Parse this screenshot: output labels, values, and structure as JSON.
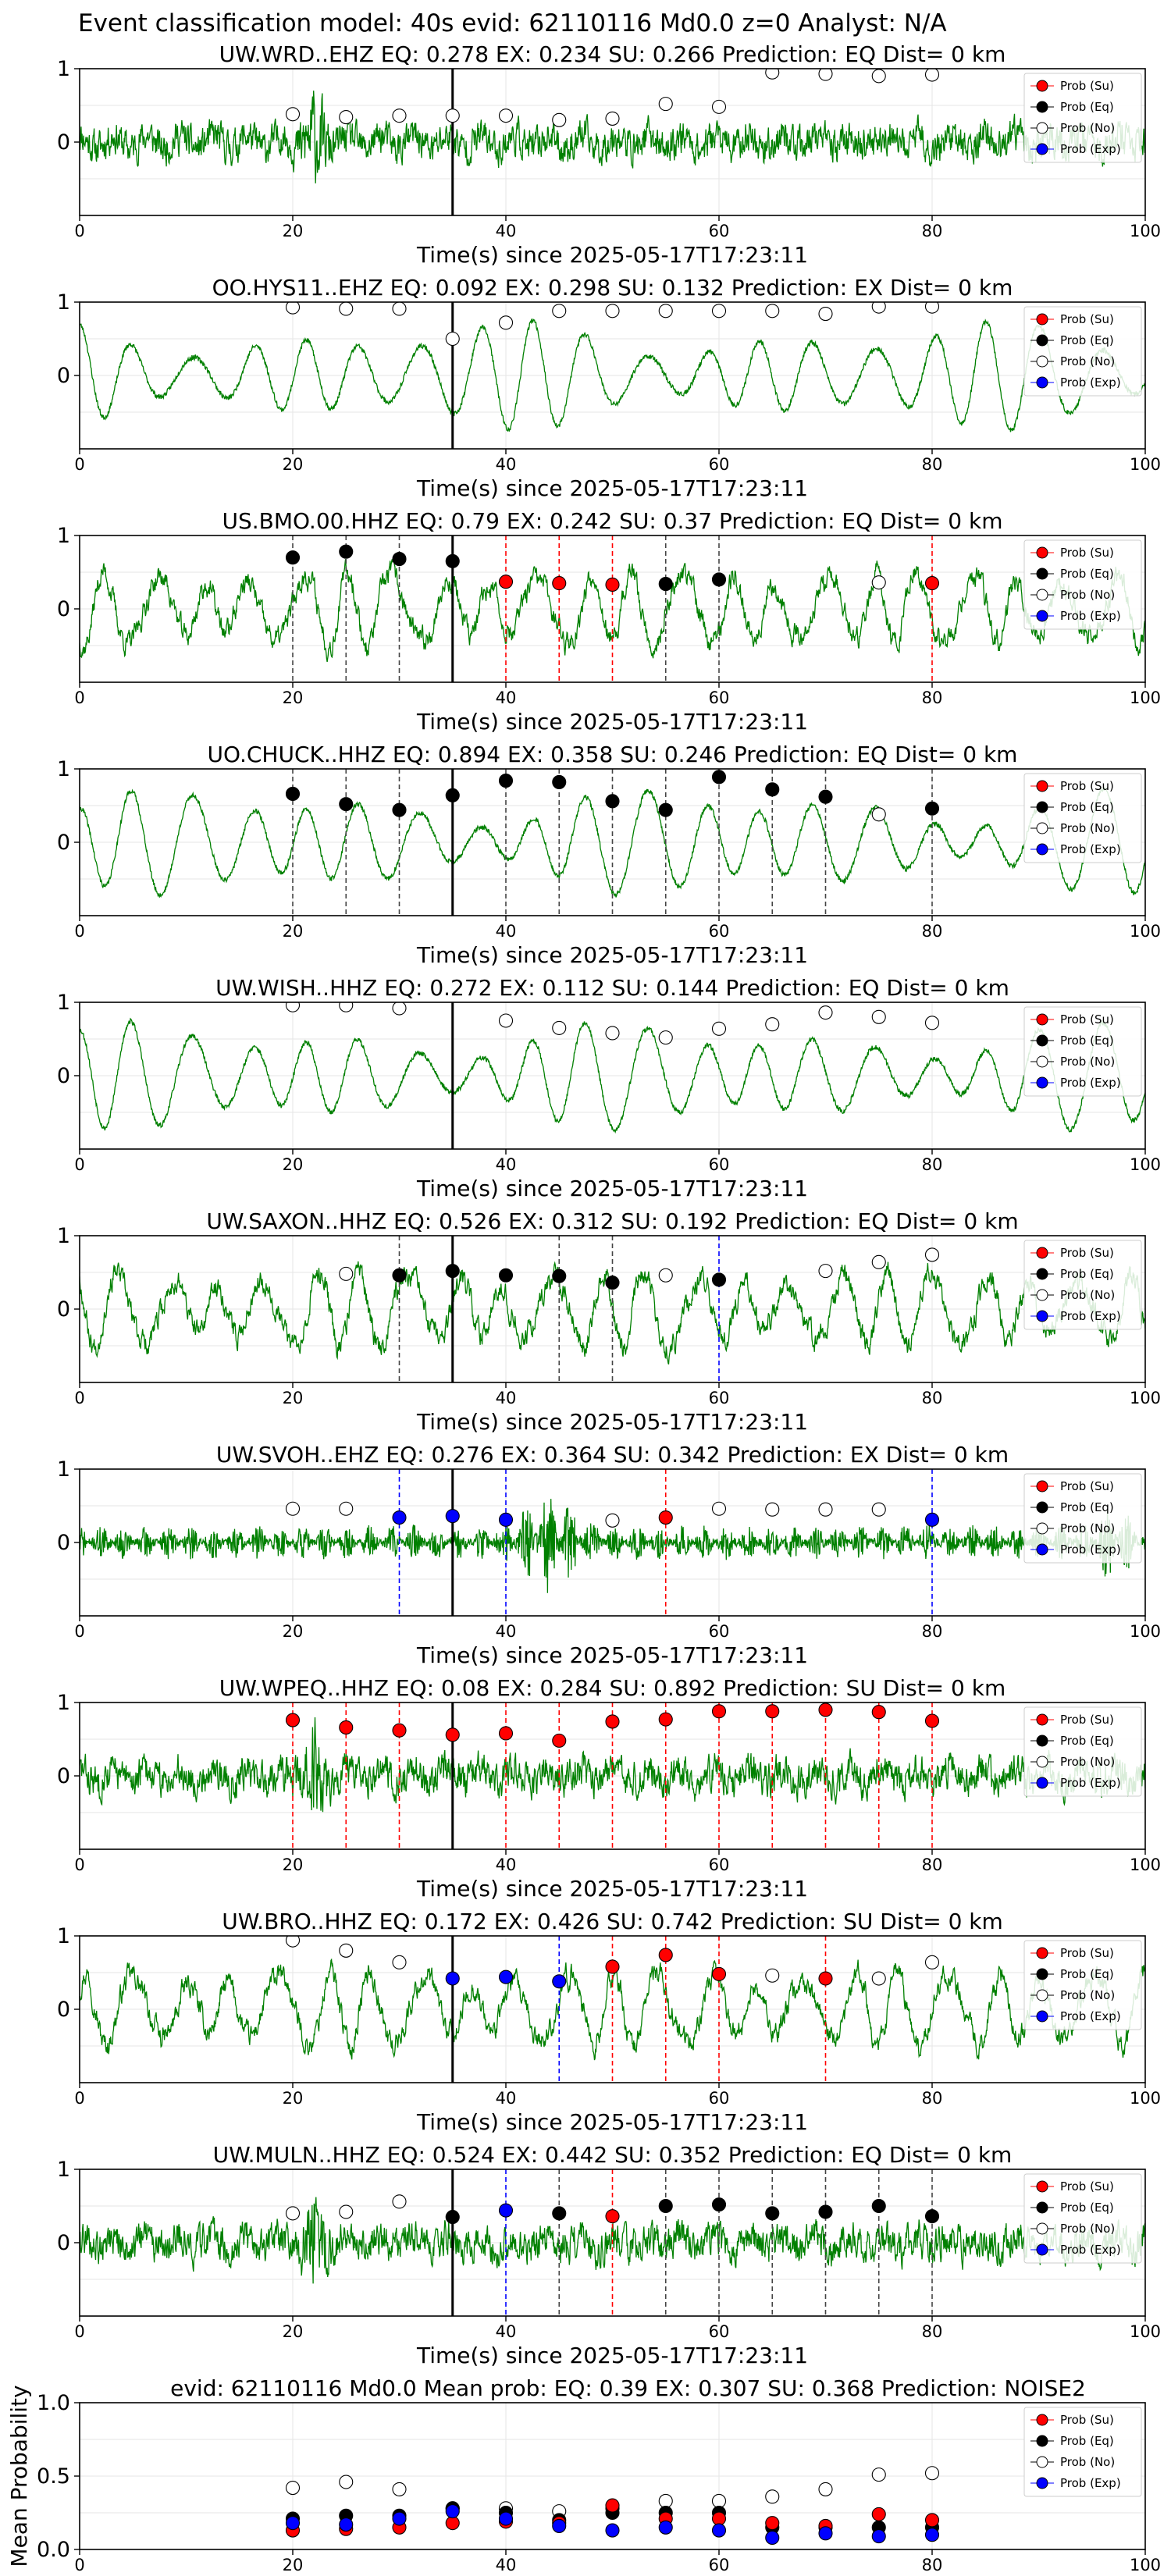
{
  "figure_title": "Event classification model: 40s evid: 62110116 Md0.0 z=0 Analyst: N/A",
  "x_label": "Time(s) since 2025-05-17T17:23:11",
  "legend": [
    {
      "label": "Prob (Su)",
      "color": "#ff0000"
    },
    {
      "label": "Prob (Eq)",
      "color": "#000000"
    },
    {
      "label": "Prob (No)",
      "color": "#ffffff"
    },
    {
      "label": "Prob (Exp)",
      "color": "#0000ff"
    }
  ],
  "colors": {
    "trace": "#008000",
    "su": "#ff0000",
    "eq": "#000000",
    "no": "#ffffff",
    "exp": "#0000ff",
    "pick": "#000000"
  },
  "chart_data": [
    {
      "type": "line",
      "station": "UW.WRD..EHZ",
      "title": "UW.WRD..EHZ   EQ: 0.278  EX: 0.234  SU: 0.266   Prediction: EQ    Dist= 0 km",
      "xlim": [
        0,
        100
      ],
      "ylim": [
        -1,
        1
      ],
      "xticks": [
        0,
        20,
        40,
        60,
        80,
        100
      ],
      "yticks": [
        1,
        0
      ],
      "pick_time": 35,
      "trace_style": "noisy",
      "seed": 11,
      "x": [
        20,
        25,
        30,
        35,
        40,
        45,
        50,
        55,
        60,
        65,
        70,
        75,
        80
      ],
      "prob_no": [
        0.38,
        0.34,
        0.36,
        0.36,
        0.36,
        0.3,
        0.32,
        0.52,
        0.48,
        0.95,
        0.93,
        0.9,
        0.92
      ],
      "prob_eq": [],
      "prob_su": [],
      "prob_exp": [],
      "vlines": []
    },
    {
      "type": "line",
      "station": "OO.HYS11..EHZ",
      "title": "OO.HYS11..EHZ   EQ: 0.092  EX: 0.298  SU: 0.132   Prediction: EX    Dist= 0 km",
      "xlim": [
        0,
        100
      ],
      "ylim": [
        -1,
        1
      ],
      "xticks": [
        0,
        20,
        40,
        60,
        80,
        100
      ],
      "yticks": [
        1,
        0
      ],
      "pick_time": 35,
      "trace_style": "oscillating",
      "seed": 23,
      "x": [
        20,
        25,
        30,
        35,
        40,
        45,
        50,
        55,
        60,
        65,
        70,
        75,
        80
      ],
      "prob_no": [
        0.93,
        0.91,
        0.91,
        0.5,
        0.72,
        0.88,
        0.88,
        0.88,
        0.88,
        0.88,
        0.84,
        0.94,
        0.94
      ],
      "prob_eq": [],
      "prob_su": [],
      "prob_exp": [],
      "vlines": []
    },
    {
      "type": "line",
      "station": "US.BMO.00.HHZ",
      "title": "US.BMO.00.HHZ   EQ: 0.79  EX: 0.242  SU: 0.37   Prediction: EQ    Dist= 0 km",
      "xlim": [
        0,
        100
      ],
      "ylim": [
        -1,
        1
      ],
      "xticks": [
        0,
        20,
        40,
        60,
        80,
        100
      ],
      "yticks": [
        1,
        0
      ],
      "pick_time": 35,
      "trace_style": "mixed",
      "seed": 37,
      "x": [
        20,
        25,
        30,
        35,
        40,
        45,
        50,
        55,
        60,
        75,
        80
      ],
      "prob_eq": [
        [
          20,
          0.7
        ],
        [
          25,
          0.78
        ],
        [
          30,
          0.68
        ],
        [
          35,
          0.65
        ],
        [
          55,
          0.34
        ],
        [
          60,
          0.4
        ]
      ],
      "prob_su": [
        [
          40,
          0.37
        ],
        [
          45,
          0.35
        ],
        [
          50,
          0.33
        ],
        [
          80,
          0.35
        ]
      ],
      "prob_no": [
        [
          75,
          0.36
        ]
      ],
      "prob_exp": [],
      "vlines": [
        [
          20,
          "eq"
        ],
        [
          25,
          "eq"
        ],
        [
          30,
          "eq"
        ],
        [
          40,
          "su"
        ],
        [
          45,
          "su"
        ],
        [
          50,
          "su"
        ],
        [
          55,
          "eq"
        ],
        [
          60,
          "eq"
        ],
        [
          80,
          "su"
        ]
      ]
    },
    {
      "type": "line",
      "station": "UO.CHUCK..HHZ",
      "title": "UO.CHUCK..HHZ   EQ: 0.894  EX: 0.358  SU: 0.246   Prediction: EQ    Dist= 0 km",
      "xlim": [
        0,
        100
      ],
      "ylim": [
        -1,
        1
      ],
      "xticks": [
        0,
        20,
        40,
        60,
        80,
        100
      ],
      "yticks": [
        1,
        0
      ],
      "pick_time": 35,
      "trace_style": "oscillating",
      "seed": 41,
      "x": [
        20,
        25,
        30,
        35,
        40,
        45,
        50,
        55,
        60,
        65,
        70,
        75,
        80
      ],
      "prob_eq": [
        [
          20,
          0.66
        ],
        [
          25,
          0.52
        ],
        [
          30,
          0.44
        ],
        [
          35,
          0.64
        ],
        [
          40,
          0.84
        ],
        [
          45,
          0.82
        ],
        [
          50,
          0.56
        ],
        [
          55,
          0.44
        ],
        [
          60,
          0.89
        ],
        [
          65,
          0.72
        ],
        [
          70,
          0.62
        ],
        [
          80,
          0.46
        ]
      ],
      "prob_su": [],
      "prob_no": [
        [
          75,
          0.38
        ]
      ],
      "prob_exp": [],
      "vlines": [
        [
          20,
          "eq"
        ],
        [
          25,
          "eq"
        ],
        [
          30,
          "eq"
        ],
        [
          40,
          "eq"
        ],
        [
          45,
          "eq"
        ],
        [
          50,
          "eq"
        ],
        [
          55,
          "eq"
        ],
        [
          60,
          "eq"
        ],
        [
          65,
          "eq"
        ],
        [
          70,
          "eq"
        ],
        [
          80,
          "eq"
        ]
      ]
    },
    {
      "type": "line",
      "station": "UW.WISH..HHZ",
      "title": "UW.WISH..HHZ   EQ: 0.272  EX: 0.112  SU: 0.144   Prediction: EQ    Dist= 0 km",
      "xlim": [
        0,
        100
      ],
      "ylim": [
        -1,
        1
      ],
      "xticks": [
        0,
        20,
        40,
        60,
        80,
        100
      ],
      "yticks": [
        1,
        0
      ],
      "pick_time": 35,
      "trace_style": "oscillating",
      "seed": 53,
      "x": [
        20,
        25,
        30,
        35,
        40,
        45,
        50,
        55,
        60,
        65,
        70,
        75,
        80
      ],
      "prob_no": [
        [
          20,
          0.96
        ],
        [
          25,
          0.96
        ],
        [
          30,
          0.92
        ],
        [
          40,
          0.75
        ],
        [
          45,
          0.65
        ],
        [
          50,
          0.58
        ],
        [
          55,
          0.52
        ],
        [
          60,
          0.64
        ],
        [
          65,
          0.7
        ],
        [
          70,
          0.86
        ],
        [
          75,
          0.8
        ],
        [
          80,
          0.72
        ]
      ],
      "prob_eq": [],
      "prob_su": [],
      "prob_exp": [],
      "vlines": []
    },
    {
      "type": "line",
      "station": "UW.SAXON..HHZ",
      "title": "UW.SAXON..HHZ   EQ: 0.526  EX: 0.312  SU: 0.192   Prediction: EQ    Dist= 0 km",
      "xlim": [
        0,
        100
      ],
      "ylim": [
        -1,
        1
      ],
      "xticks": [
        0,
        20,
        40,
        60,
        80,
        100
      ],
      "yticks": [
        1,
        0
      ],
      "pick_time": 35,
      "trace_style": "mixed",
      "seed": 67,
      "x": [
        25,
        30,
        35,
        40,
        45,
        50,
        55,
        60,
        70,
        75,
        80
      ],
      "prob_no": [
        [
          25,
          0.48
        ],
        [
          55,
          0.46
        ],
        [
          70,
          0.52
        ],
        [
          75,
          0.64
        ],
        [
          80,
          0.74
        ]
      ],
      "prob_eq": [
        [
          30,
          0.46
        ],
        [
          35,
          0.52
        ],
        [
          40,
          0.46
        ],
        [
          45,
          0.45
        ],
        [
          50,
          0.36
        ],
        [
          60,
          0.4
        ]
      ],
      "prob_su": [],
      "prob_exp": [],
      "vlines": [
        [
          30,
          "eq"
        ],
        [
          45,
          "eq"
        ],
        [
          50,
          "eq"
        ],
        [
          60,
          "exp"
        ]
      ]
    },
    {
      "type": "line",
      "station": "UW.SVOH..EHZ",
      "title": "UW.SVOH..EHZ   EQ: 0.276  EX: 0.364  SU: 0.342   Prediction: EX    Dist= 0 km",
      "xlim": [
        0,
        100
      ],
      "ylim": [
        -1,
        1
      ],
      "xticks": [
        0,
        20,
        40,
        60,
        80,
        100
      ],
      "yticks": [
        1,
        0
      ],
      "pick_time": 35,
      "trace_style": "bursty",
      "seed": 71,
      "x": [
        20,
        25,
        30,
        35,
        40,
        50,
        55,
        60,
        65,
        70,
        75,
        80
      ],
      "prob_no": [
        [
          20,
          0.46
        ],
        [
          25,
          0.46
        ],
        [
          50,
          0.3
        ],
        [
          60,
          0.46
        ],
        [
          65,
          0.45
        ],
        [
          70,
          0.45
        ],
        [
          75,
          0.45
        ]
      ],
      "prob_exp": [
        [
          30,
          0.34
        ],
        [
          35,
          0.36
        ],
        [
          40,
          0.31
        ],
        [
          80,
          0.31
        ]
      ],
      "prob_su": [
        [
          55,
          0.34
        ]
      ],
      "prob_eq": [],
      "vlines": [
        [
          30,
          "exp"
        ],
        [
          40,
          "exp"
        ],
        [
          55,
          "su"
        ],
        [
          80,
          "exp"
        ]
      ]
    },
    {
      "type": "line",
      "station": "UW.WPEQ..HHZ",
      "title": "UW.WPEQ..HHZ   EQ: 0.08  EX: 0.284  SU: 0.892   Prediction: SU    Dist= 0 km",
      "xlim": [
        0,
        100
      ],
      "ylim": [
        -1,
        1
      ],
      "xticks": [
        0,
        20,
        40,
        60,
        80,
        100
      ],
      "yticks": [
        1,
        0
      ],
      "pick_time": 35,
      "trace_style": "noisy",
      "seed": 83,
      "x": [
        20,
        25,
        30,
        35,
        40,
        45,
        50,
        55,
        60,
        65,
        70,
        75,
        80
      ],
      "prob_su": [
        [
          20,
          0.76
        ],
        [
          25,
          0.66
        ],
        [
          30,
          0.62
        ],
        [
          35,
          0.56
        ],
        [
          40,
          0.58
        ],
        [
          45,
          0.48
        ],
        [
          50,
          0.74
        ],
        [
          55,
          0.77
        ],
        [
          60,
          0.88
        ],
        [
          65,
          0.88
        ],
        [
          70,
          0.9
        ],
        [
          75,
          0.87
        ],
        [
          80,
          0.75
        ]
      ],
      "prob_eq": [],
      "prob_no": [],
      "prob_exp": [],
      "vlines": [
        [
          20,
          "su"
        ],
        [
          25,
          "su"
        ],
        [
          30,
          "su"
        ],
        [
          40,
          "su"
        ],
        [
          45,
          "su"
        ],
        [
          50,
          "su"
        ],
        [
          55,
          "su"
        ],
        [
          60,
          "su"
        ],
        [
          65,
          "su"
        ],
        [
          70,
          "su"
        ],
        [
          75,
          "su"
        ],
        [
          80,
          "su"
        ]
      ]
    },
    {
      "type": "line",
      "station": "UW.BRO..HHZ",
      "title": "UW.BRO..HHZ   EQ: 0.172  EX: 0.426  SU: 0.742   Prediction: SU    Dist= 0 km",
      "xlim": [
        0,
        100
      ],
      "ylim": [
        -1,
        1
      ],
      "xticks": [
        0,
        20,
        40,
        60,
        80,
        100
      ],
      "yticks": [
        1,
        0
      ],
      "pick_time": 35,
      "trace_style": "mixed",
      "seed": 97,
      "x": [
        20,
        25,
        30,
        35,
        40,
        45,
        50,
        55,
        60,
        65,
        70,
        75,
        80
      ],
      "prob_no": [
        [
          20,
          0.94
        ],
        [
          25,
          0.8
        ],
        [
          30,
          0.64
        ],
        [
          65,
          0.46
        ],
        [
          75,
          0.42
        ],
        [
          80,
          0.64
        ]
      ],
      "prob_exp": [
        [
          35,
          0.42
        ],
        [
          40,
          0.44
        ],
        [
          45,
          0.38
        ]
      ],
      "prob_su": [
        [
          50,
          0.58
        ],
        [
          55,
          0.74
        ],
        [
          60,
          0.48
        ],
        [
          70,
          0.42
        ]
      ],
      "prob_eq": [],
      "vlines": [
        [
          45,
          "exp"
        ],
        [
          50,
          "su"
        ],
        [
          55,
          "su"
        ],
        [
          60,
          "su"
        ],
        [
          70,
          "su"
        ]
      ]
    },
    {
      "type": "line",
      "station": "UW.MULN..HHZ",
      "title": "UW.MULN..HHZ   EQ: 0.524  EX: 0.442  SU: 0.352   Prediction: EQ    Dist= 0 km",
      "xlim": [
        0,
        100
      ],
      "ylim": [
        -1,
        1
      ],
      "xticks": [
        0,
        20,
        40,
        60,
        80,
        100
      ],
      "yticks": [
        1,
        0
      ],
      "pick_time": 35,
      "trace_style": "noisy",
      "seed": 109,
      "x": [
        20,
        25,
        30,
        35,
        40,
        45,
        50,
        55,
        60,
        65,
        70,
        75,
        80
      ],
      "prob_no": [
        [
          20,
          0.4
        ],
        [
          25,
          0.42
        ],
        [
          30,
          0.56
        ]
      ],
      "prob_eq": [
        [
          35,
          0.35
        ],
        [
          45,
          0.4
        ],
        [
          55,
          0.5
        ],
        [
          60,
          0.52
        ],
        [
          65,
          0.4
        ],
        [
          70,
          0.42
        ],
        [
          75,
          0.5
        ],
        [
          80,
          0.36
        ]
      ],
      "prob_exp": [
        [
          40,
          0.44
        ]
      ],
      "prob_su": [
        [
          50,
          0.36
        ]
      ],
      "vlines": [
        [
          40,
          "exp"
        ],
        [
          45,
          "eq"
        ],
        [
          50,
          "su"
        ],
        [
          55,
          "eq"
        ],
        [
          60,
          "eq"
        ],
        [
          65,
          "eq"
        ],
        [
          70,
          "eq"
        ],
        [
          75,
          "eq"
        ],
        [
          80,
          "eq"
        ]
      ]
    },
    {
      "type": "scatter",
      "title": "evid: 62110116  Md0.0   Mean prob:   EQ: 0.39  EX: 0.307  SU: 0.368   Prediction: NOISE2",
      "ylabel": "Mean Probability",
      "xlim": [
        0,
        100
      ],
      "ylim": [
        0,
        1
      ],
      "xticks": [
        0,
        20,
        40,
        60,
        80,
        100
      ],
      "yticks": [
        1.0,
        0.5,
        0.0
      ],
      "x": [
        20,
        25,
        30,
        35,
        40,
        45,
        50,
        55,
        60,
        65,
        70,
        75,
        80
      ],
      "prob_no": [
        0.42,
        0.46,
        0.41,
        0.28,
        0.28,
        0.26,
        0.28,
        0.33,
        0.33,
        0.36,
        0.41,
        0.51,
        0.52
      ],
      "prob_eq": [
        0.21,
        0.23,
        0.23,
        0.28,
        0.25,
        0.2,
        0.25,
        0.25,
        0.25,
        0.15,
        0.15,
        0.15,
        0.15
      ],
      "prob_su": [
        0.13,
        0.14,
        0.15,
        0.18,
        0.19,
        0.18,
        0.3,
        0.21,
        0.21,
        0.18,
        0.16,
        0.24,
        0.2
      ],
      "prob_exp": [
        0.18,
        0.17,
        0.21,
        0.26,
        0.21,
        0.16,
        0.13,
        0.15,
        0.13,
        0.08,
        0.11,
        0.09,
        0.1
      ]
    }
  ]
}
